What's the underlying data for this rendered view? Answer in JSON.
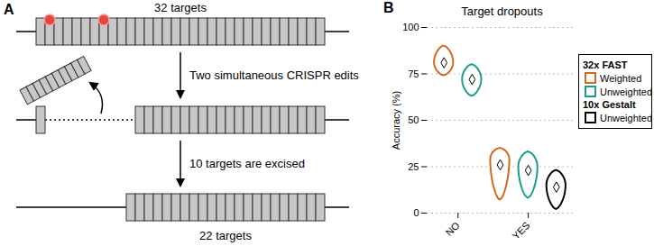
{
  "diagram": {
    "panel_label": "A",
    "top": {
      "label": "32 targets",
      "count": 32,
      "edit_positions": [
        2,
        8
      ]
    },
    "steps": [
      "Two simultaneous CRISPR edits",
      "10 targets are excised"
    ],
    "middle": {
      "left_count": 1,
      "excised_count": 10,
      "right_count": 21
    },
    "bottom": {
      "label": "22 targets",
      "count": 22
    }
  },
  "chart_data": {
    "panel_label": "B",
    "type": "violin",
    "title": "Target dropouts",
    "y_label": "Accuracy (%)",
    "categories": [
      "NO",
      "YES"
    ],
    "ylim": [
      0,
      100
    ],
    "yticks": [
      0,
      25,
      50,
      75,
      100
    ],
    "grid": true,
    "legend": "right",
    "series": [
      {
        "name": "Weighted",
        "group": "32x FAST",
        "color": "#d2691e",
        "mean": [
          81,
          26
        ],
        "min": [
          74,
          7
        ],
        "max": [
          90,
          35
        ],
        "peak": [
          81,
          29
        ]
      },
      {
        "name": "Unweighted",
        "group": "32x FAST",
        "color": "#1a9e8a",
        "mean": [
          72,
          23
        ],
        "min": [
          63,
          8
        ],
        "max": [
          80,
          33
        ],
        "peak": [
          72,
          25
        ]
      },
      {
        "name": "Unweighted",
        "group": "10x Gestalt",
        "color": "#000000",
        "mean": [
          null,
          14
        ],
        "min": [
          null,
          2
        ],
        "max": [
          null,
          23
        ],
        "peak": [
          null,
          15
        ]
      }
    ]
  }
}
